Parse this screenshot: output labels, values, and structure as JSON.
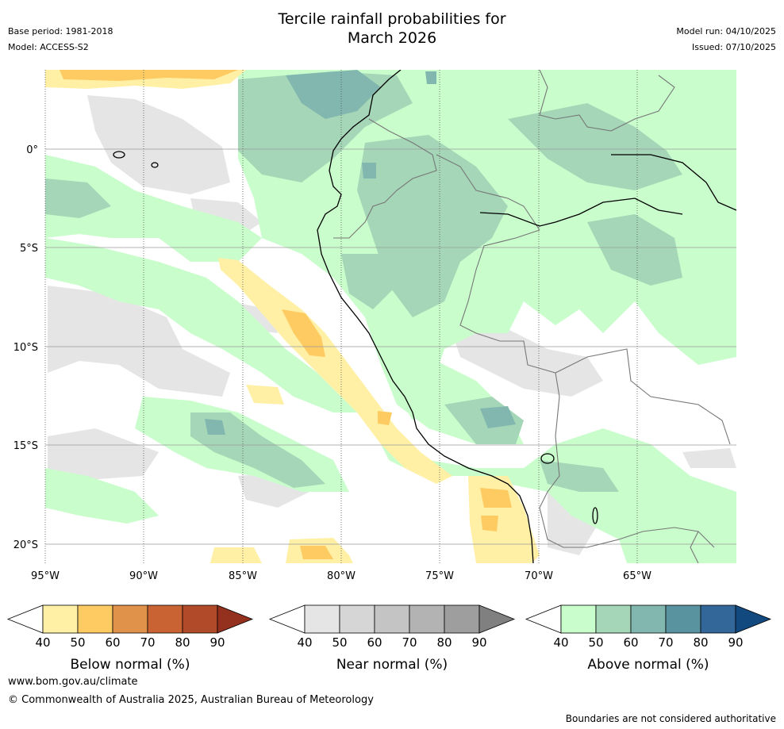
{
  "title_line1": "Tercile rainfall probabilities for",
  "title_line2": "March 2026",
  "meta_left": [
    "Base period: 1981-2018",
    "Model: ACCESS-S2"
  ],
  "meta_right": [
    "Model run: 04/10/2025",
    "Issued: 07/10/2025"
  ],
  "axes": {
    "lon_labels": [
      "95°W",
      "90°W",
      "85°W",
      "80°W",
      "75°W",
      "70°W",
      "65°W"
    ],
    "lat_labels": [
      "0°",
      "5°S",
      "10°S",
      "15°S",
      "20°S"
    ]
  },
  "colorbars": [
    {
      "name": "below",
      "label": "Below normal (%)",
      "ticks": [
        "40",
        "50",
        "60",
        "70",
        "80",
        "90"
      ],
      "colors": [
        "#fff0a6",
        "#fecb63",
        "#e0924a",
        "#ca6333",
        "#b14a28",
        "#94301e"
      ]
    },
    {
      "name": "near",
      "label": "Near normal (%)",
      "ticks": [
        "40",
        "50",
        "60",
        "70",
        "80",
        "90"
      ],
      "colors": [
        "#e5e5e5",
        "#d6d6d6",
        "#c4c4c4",
        "#b3b3b3",
        "#9e9e9e",
        "#808080"
      ]
    },
    {
      "name": "above",
      "label": "Above normal (%)",
      "ticks": [
        "40",
        "50",
        "60",
        "70",
        "80",
        "90"
      ],
      "colors": [
        "#c9fdcc",
        "#a4d6b7",
        "#82b7b0",
        "#5a93a0",
        "#336799",
        "#124a80"
      ]
    }
  ],
  "footer": {
    "website": "www.bom.gov.au/climate",
    "copyright": "© Commonwealth of Australia 2025, Australian Bureau of Meteorology",
    "disclaimer": "Boundaries are not considered authoritative"
  }
}
